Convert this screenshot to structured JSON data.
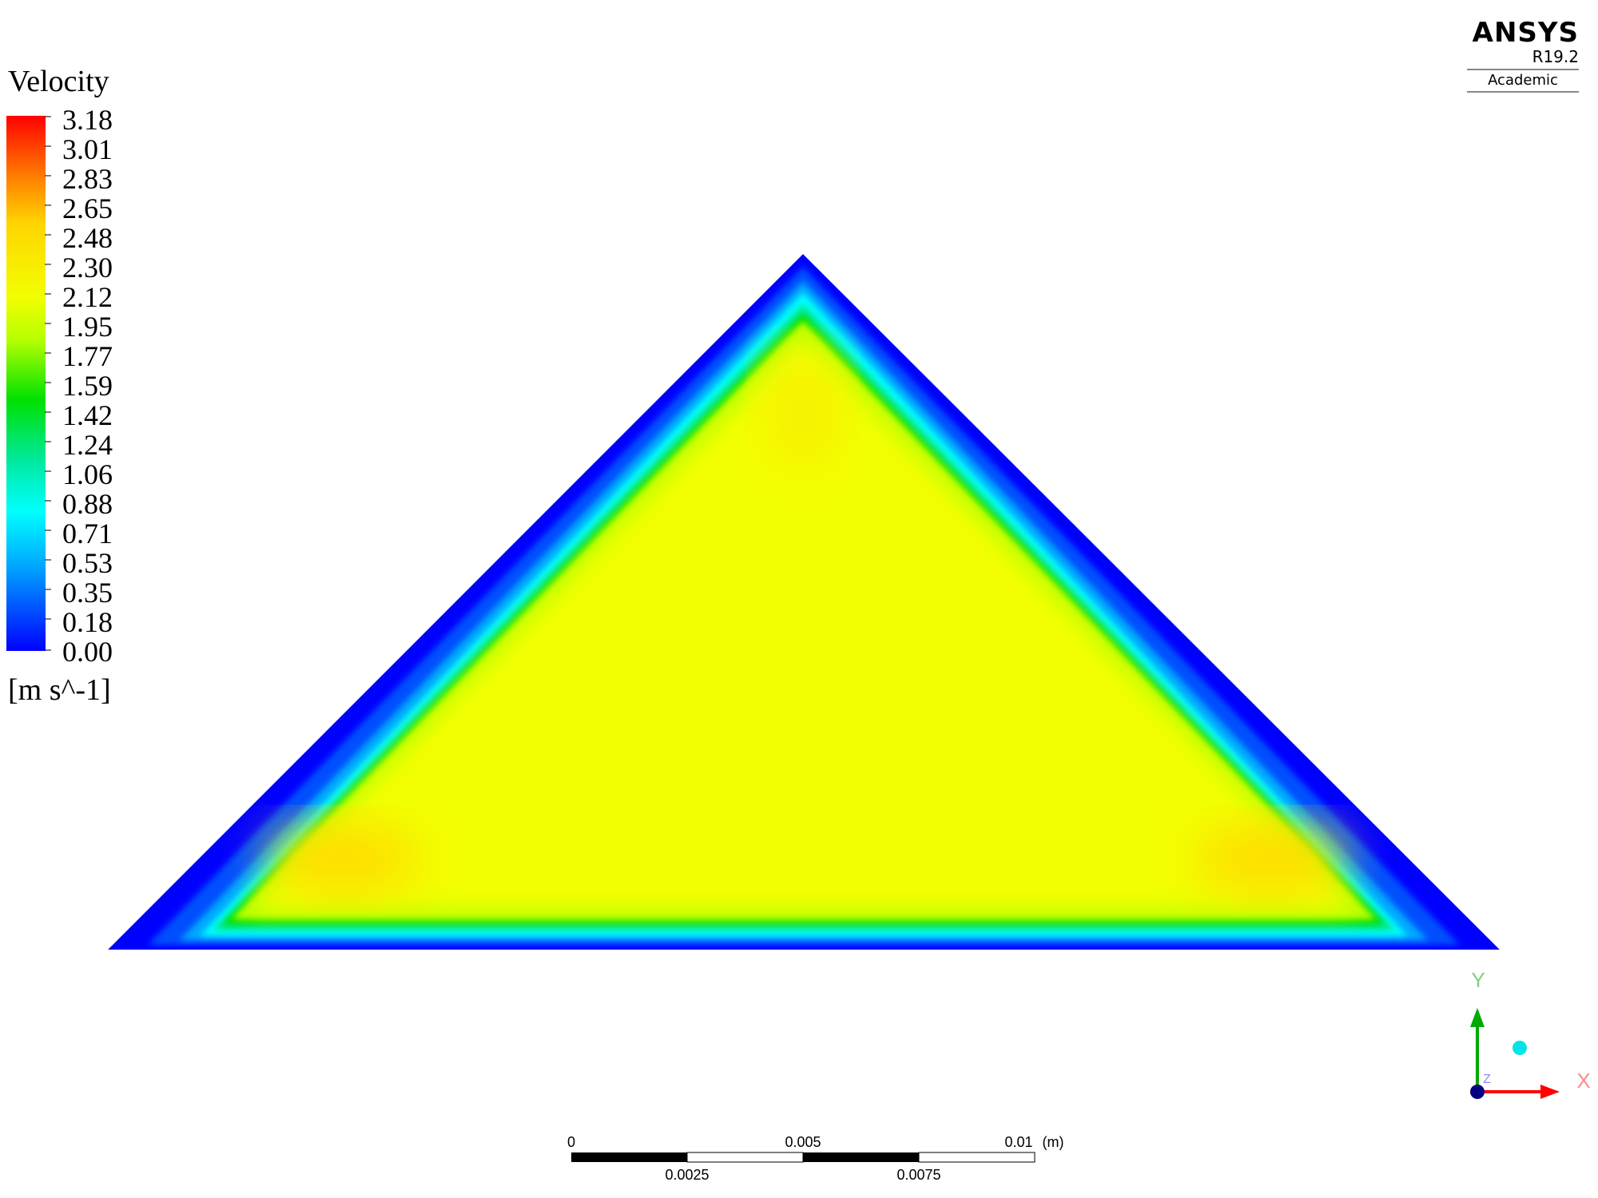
{
  "legend": {
    "title": "Velocity",
    "unit": "[m s^-1]",
    "ticks": [
      "3.18",
      "3.01",
      "2.83",
      "2.65",
      "2.48",
      "2.30",
      "2.12",
      "1.95",
      "1.77",
      "1.59",
      "1.42",
      "1.24",
      "1.06",
      "0.88",
      "0.71",
      "0.53",
      "0.35",
      "0.18",
      "0.00"
    ],
    "min": 0.0,
    "max": 3.18
  },
  "logo": {
    "brand": "ANSYS",
    "version": "R19.2",
    "edition": "Academic"
  },
  "colors": {
    "wall": "#0000ff",
    "core": "#f2ff00",
    "corner_peak": "#ffd400",
    "x_axis": "#ff0000",
    "y_axis": "#00aa00",
    "origin": "#000080",
    "iso_marker": "#00e5e5"
  },
  "scale_bar": {
    "top_labels": [
      "0",
      "0.005",
      "0.01"
    ],
    "bottom_labels": [
      "0.0025",
      "0.0075"
    ],
    "unit": "(m)"
  },
  "triad": {
    "x_label": "X",
    "y_label": "Y",
    "z_label": "Z"
  }
}
